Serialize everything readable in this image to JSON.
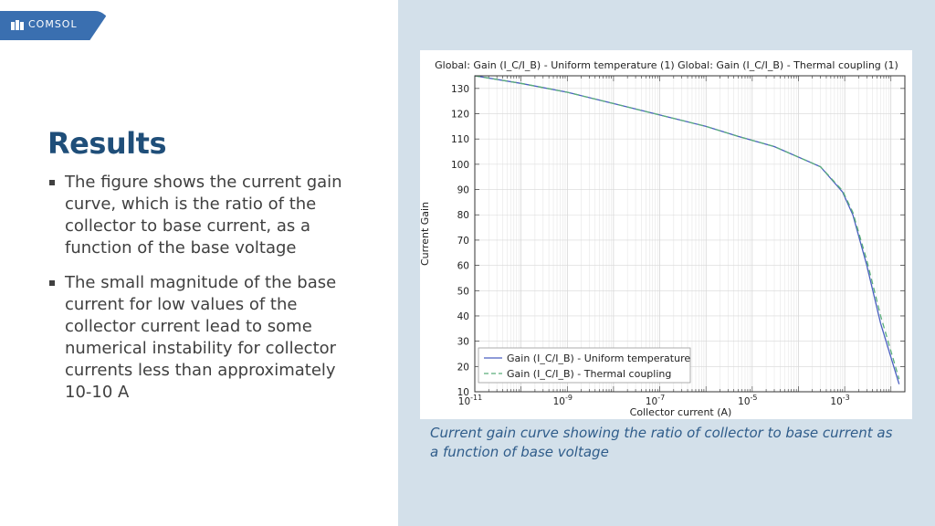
{
  "brand": {
    "logo_text": "COMSOL",
    "color": "#3a6fb0"
  },
  "slide": {
    "title": "Results",
    "bullets": [
      "The figure shows the current gain curve, which is the ratio of the collector to base current, as a function of the base voltage",
      "The small magnitude of the base current for low values of the collector current lead to some numerical instability for collector currents less than approximately 10-10 A"
    ],
    "caption": "Current gain curve showing the ratio of collector to base current as a function of base voltage"
  },
  "chart_data": {
    "type": "line",
    "title": "Global: Gain (I_C/I_B) - Uniform temperature (1)  Global: Gain (I_C/I_B) - Thermal coupling (1)",
    "xlabel": "Collector current (A)",
    "ylabel": "Current Gain",
    "xscale": "log",
    "xlim": [
      1e-11,
      0.02
    ],
    "ylim": [
      10,
      135
    ],
    "xticks": [
      1e-11,
      1e-09,
      1e-07,
      1e-05,
      0.001
    ],
    "xtick_labels": [
      {
        "base": "10",
        "exp": "-11"
      },
      {
        "base": "10",
        "exp": "-9"
      },
      {
        "base": "10",
        "exp": "-7"
      },
      {
        "base": "10",
        "exp": "-5"
      },
      {
        "base": "10",
        "exp": "-3"
      }
    ],
    "yticks": [
      10,
      20,
      30,
      40,
      50,
      60,
      70,
      80,
      90,
      100,
      110,
      120,
      130
    ],
    "grid": true,
    "legend_position": "bottom-left",
    "series": [
      {
        "name": "Gain (I_C/I_B) - Uniform temperature",
        "color": "#4a5fc1",
        "dash": "solid",
        "x": [
          1e-11,
          1e-10,
          1e-09,
          1e-08,
          1e-07,
          1e-06,
          5e-06,
          3e-05,
          0.0003,
          0.0009,
          0.0015,
          0.003,
          0.006,
          0.015
        ],
        "y": [
          135,
          132,
          128.5,
          124,
          119.5,
          115,
          111,
          107,
          99,
          89,
          80,
          60,
          37,
          13
        ]
      },
      {
        "name": "Gain (I_C/I_B) - Thermal coupling",
        "color": "#5aae7a",
        "dash": "dashed",
        "x": [
          1e-11,
          1e-10,
          1e-09,
          1e-08,
          1e-07,
          1e-06,
          5e-06,
          3e-05,
          0.0003,
          0.0009,
          0.0015,
          0.003,
          0.006,
          0.015
        ],
        "y": [
          135,
          132,
          128.5,
          124,
          119.5,
          115,
          111,
          107,
          99,
          89.5,
          81,
          62,
          40,
          15
        ]
      }
    ]
  }
}
